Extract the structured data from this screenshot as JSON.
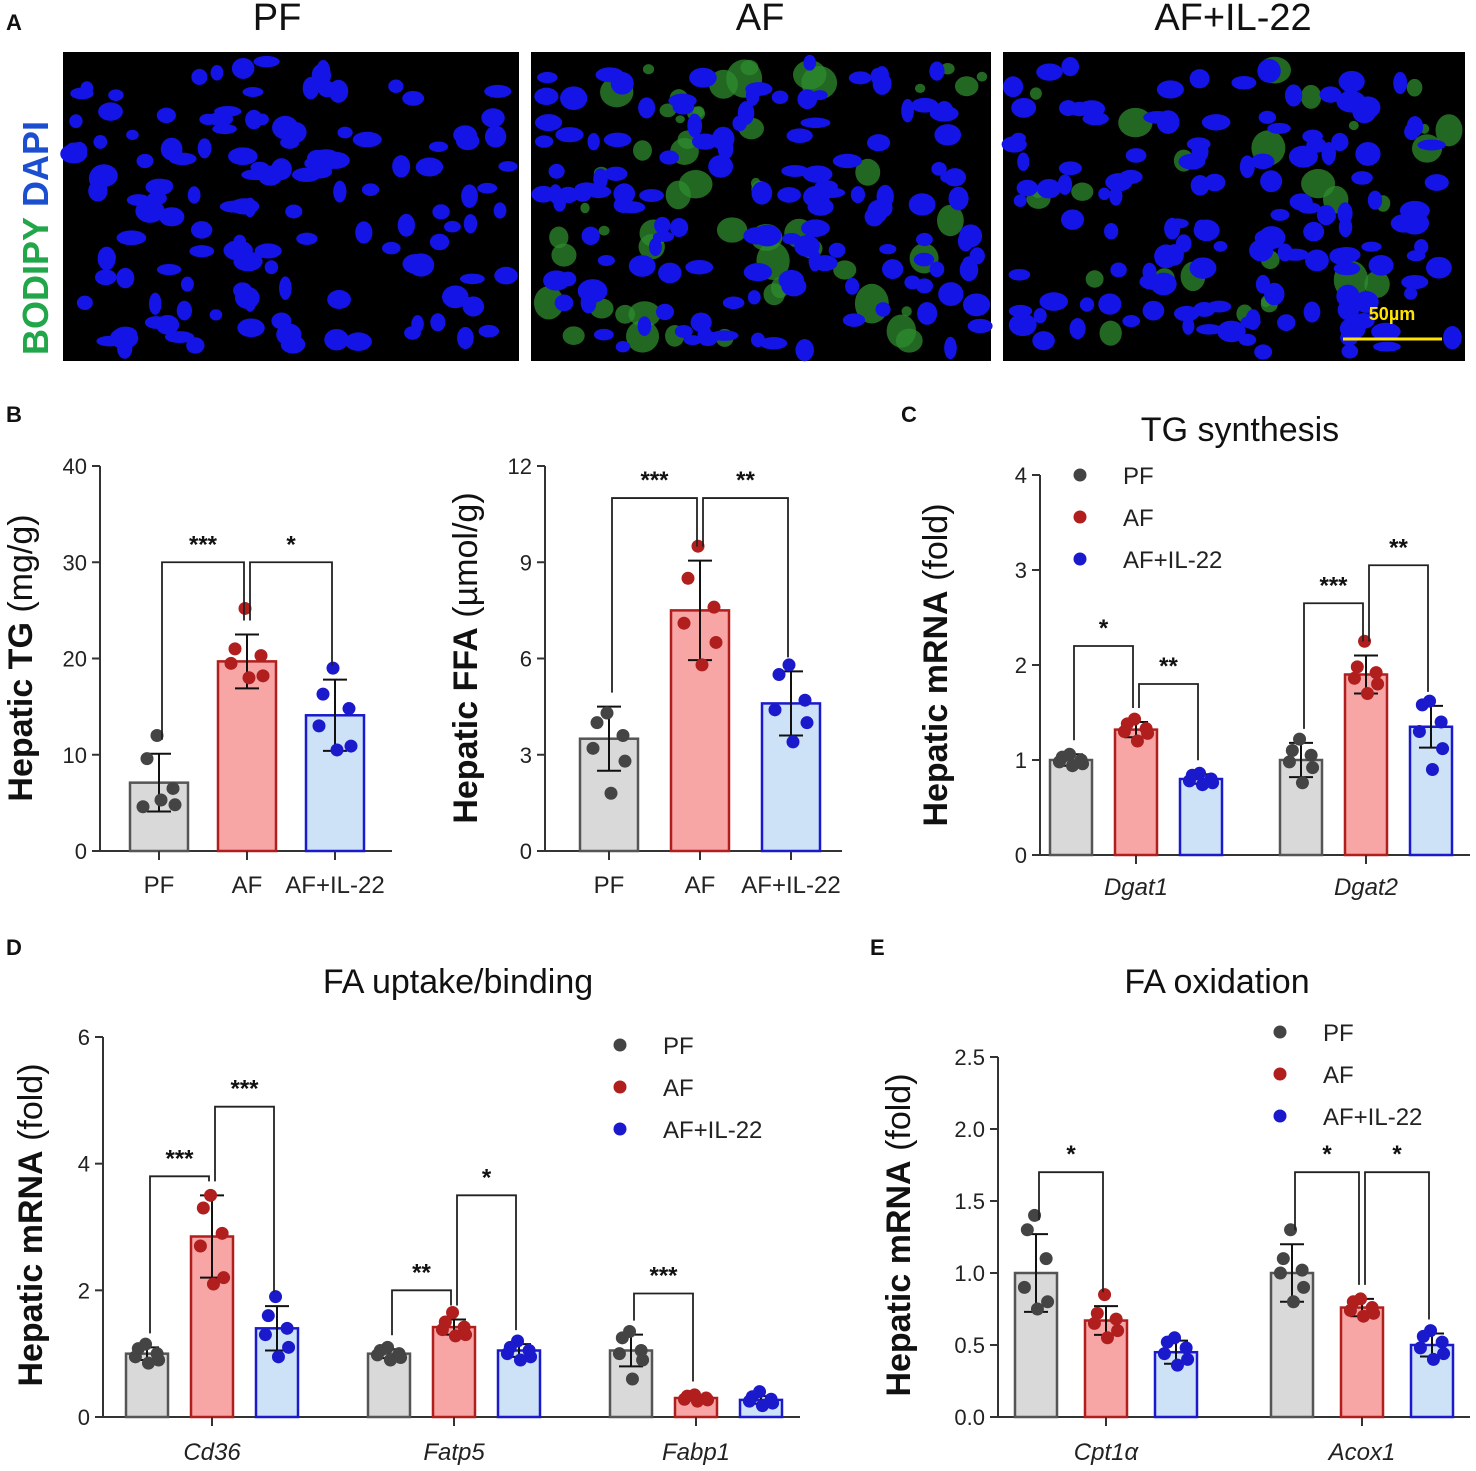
{
  "panelA": {
    "label": "A",
    "columns": [
      "PF",
      "AF",
      "AF+IL-22"
    ],
    "stain_label_green": "BODIPY",
    "stain_label_blue": "DAPI",
    "scale_bar": "50µm",
    "green_amount": [
      0,
      0.9,
      0.45
    ],
    "colors": {
      "nuclei": "#1414e6",
      "lipid": "#2e8b2e",
      "background": "#000000",
      "scale": "#ffe400"
    }
  },
  "colors": {
    "PF": "#d9d9d9",
    "AF": "#f7a5a5",
    "AF+IL-22": "#cde1f7",
    "PF_edge": "#555555",
    "AF_edge": "#b01e1e",
    "AF+IL-22_edge": "#1a1acc",
    "PF_dot": "#444444",
    "AF_dot": "#b01e1e",
    "AF+IL-22_dot": "#1a1acc"
  },
  "panels": [
    {
      "id": "B1",
      "label": "B",
      "title": "",
      "ylabel_bold": "Hepatic TG",
      "ylabel_rest": " (mg/g)",
      "ylim": [
        0,
        40
      ],
      "yticks": [
        "0",
        "10",
        "20",
        "30",
        "40"
      ],
      "groups": [
        ""
      ],
      "legend": [],
      "chart_data": {
        "type": "bar",
        "categories": [
          "PF",
          "AF",
          "AF+IL-22"
        ],
        "series": [
          {
            "name": "PF",
            "mean": [
              7.1
            ],
            "sd": [
              3.0
            ],
            "points": [
              [
                12.0,
                9.6,
                6.5,
                4.6,
                4.8,
                5.3
              ]
            ]
          },
          {
            "name": "AF",
            "mean": [
              19.7
            ],
            "sd": [
              2.8
            ],
            "points": [
              [
                25.2,
                21.0,
                20.3,
                19.5,
                18.2,
                18.0
              ]
            ]
          },
          {
            "name": "AF+IL-22",
            "mean": [
              14.1
            ],
            "sd": [
              3.7
            ],
            "points": [
              [
                19.0,
                16.3,
                14.8,
                13.0,
                10.9,
                10.5
              ]
            ]
          }
        ]
      },
      "sig": [
        {
          "from": [
            0,
            0
          ],
          "to": [
            0,
            1
          ],
          "text": "***",
          "y": 30
        },
        {
          "from": [
            0,
            1
          ],
          "to": [
            0,
            2
          ],
          "text": "*",
          "y": 30
        }
      ]
    },
    {
      "id": "B2",
      "label": "",
      "title": "",
      "ylabel_bold": "Hepatic FFA",
      "ylabel_rest": " (µmol/g)",
      "ylim": [
        0,
        12
      ],
      "yticks": [
        "0",
        "3",
        "6",
        "9",
        "12"
      ],
      "groups": [
        ""
      ],
      "legend": [],
      "chart_data": {
        "type": "bar",
        "categories": [
          "PF",
          "AF",
          "AF+IL-22"
        ],
        "series": [
          {
            "name": "PF",
            "mean": [
              3.5
            ],
            "sd": [
              1.0
            ],
            "points": [
              [
                4.3,
                4.0,
                3.6,
                3.2,
                2.8,
                1.8
              ]
            ]
          },
          {
            "name": "AF",
            "mean": [
              7.5
            ],
            "sd": [
              1.55
            ],
            "points": [
              [
                9.5,
                8.5,
                7.6,
                7.1,
                6.5,
                5.8
              ]
            ]
          },
          {
            "name": "AF+IL-22",
            "mean": [
              4.6
            ],
            "sd": [
              1.0
            ],
            "points": [
              [
                5.8,
                5.5,
                4.7,
                4.4,
                4.0,
                3.4
              ]
            ]
          }
        ]
      },
      "sig": [
        {
          "from": [
            0,
            0
          ],
          "to": [
            0,
            1
          ],
          "text": "***",
          "y": 11.0
        },
        {
          "from": [
            0,
            1
          ],
          "to": [
            0,
            2
          ],
          "text": "**",
          "y": 11.0
        }
      ]
    },
    {
      "id": "C",
      "label": "C",
      "title": "TG synthesis",
      "ylabel_bold": "Hepatic mRNA",
      "ylabel_rest": " (fold)",
      "ylim": [
        0,
        4
      ],
      "yticks": [
        "0",
        "1",
        "2",
        "3",
        "4"
      ],
      "groups": [
        "Dgat1",
        "Dgat2"
      ],
      "legend": [
        "PF",
        "AF",
        "AF+IL-22"
      ],
      "chart_data": {
        "type": "bar",
        "categories": [
          "Dgat1",
          "Dgat2"
        ],
        "series": [
          {
            "name": "PF",
            "mean": [
              1.0,
              1.0
            ],
            "sd": [
              0.06,
              0.18
            ],
            "points": [
              [
                1.06,
                1.03,
                1.0,
                0.98,
                0.96,
                0.94
              ],
              [
                1.22,
                1.1,
                1.05,
                0.98,
                0.92,
                0.76
              ]
            ]
          },
          {
            "name": "AF",
            "mean": [
              1.32,
              1.9
            ],
            "sd": [
              0.08,
              0.2
            ],
            "points": [
              [
                1.43,
                1.38,
                1.33,
                1.3,
                1.28,
                1.2
              ],
              [
                2.25,
                1.98,
                1.92,
                1.86,
                1.8,
                1.7
              ]
            ]
          },
          {
            "name": "AF+IL-22",
            "mean": [
              0.8,
              1.35
            ],
            "sd": [
              0.05,
              0.22
            ],
            "points": [
              [
                0.86,
                0.84,
                0.8,
                0.78,
                0.76,
                0.74
              ],
              [
                1.62,
                1.58,
                1.4,
                1.3,
                1.12,
                0.9
              ]
            ]
          }
        ]
      },
      "sig": [
        {
          "from": [
            0,
            0
          ],
          "to": [
            0,
            1
          ],
          "text": "*",
          "y": 2.2
        },
        {
          "from": [
            0,
            1
          ],
          "to": [
            0,
            2
          ],
          "text": "**",
          "y": 1.8
        },
        {
          "from": [
            1,
            0
          ],
          "to": [
            1,
            1
          ],
          "text": "***",
          "y": 2.65
        },
        {
          "from": [
            1,
            1
          ],
          "to": [
            1,
            2
          ],
          "text": "**",
          "y": 3.05
        }
      ]
    },
    {
      "id": "D",
      "label": "D",
      "title": "FA uptake/binding",
      "ylabel_bold": "Hepatic mRNA",
      "ylabel_rest": " (fold)",
      "ylim": [
        0,
        6
      ],
      "yticks": [
        "0",
        "2",
        "4",
        "6"
      ],
      "groups": [
        "Cd36",
        "Fatp5",
        "Fabp1"
      ],
      "legend": [
        "PF",
        "AF",
        "AF+IL-22"
      ],
      "chart_data": {
        "type": "bar",
        "categories": [
          "Cd36",
          "Fatp5",
          "Fabp1"
        ],
        "series": [
          {
            "name": "PF",
            "mean": [
              1.0,
              1.0,
              1.05
            ],
            "sd": [
              0.1,
              0.07,
              0.25
            ],
            "points": [
              [
                1.15,
                1.08,
                1.0,
                0.95,
                0.9,
                0.85
              ],
              [
                1.1,
                1.05,
                1.0,
                0.98,
                0.94,
                0.9
              ],
              [
                1.35,
                1.25,
                1.05,
                1.0,
                0.9,
                0.6
              ]
            ]
          },
          {
            "name": "AF",
            "mean": [
              2.85,
              1.42,
              0.3
            ],
            "sd": [
              0.65,
              0.12,
              0.04
            ],
            "points": [
              [
                3.5,
                3.3,
                2.9,
                2.7,
                2.2,
                2.1
              ],
              [
                1.65,
                1.5,
                1.42,
                1.38,
                1.3,
                1.28
              ],
              [
                0.35,
                0.33,
                0.3,
                0.28,
                0.27,
                0.25
              ]
            ]
          },
          {
            "name": "AF+IL-22",
            "mean": [
              1.4,
              1.05,
              0.27
            ],
            "sd": [
              0.35,
              0.1,
              0.06
            ],
            "points": [
              [
                1.9,
                1.6,
                1.4,
                1.3,
                1.1,
                0.95
              ],
              [
                1.2,
                1.1,
                1.05,
                1.0,
                0.95,
                0.9
              ],
              [
                0.4,
                0.32,
                0.28,
                0.25,
                0.22,
                0.18
              ]
            ]
          }
        ]
      },
      "sig": [
        {
          "from": [
            0,
            0
          ],
          "to": [
            0,
            1
          ],
          "text": "***",
          "y": 3.8
        },
        {
          "from": [
            0,
            1
          ],
          "to": [
            0,
            2
          ],
          "text": "***",
          "y": 4.9
        },
        {
          "from": [
            1,
            0
          ],
          "to": [
            1,
            1
          ],
          "text": "**",
          "y": 2.0
        },
        {
          "from": [
            1,
            1
          ],
          "to": [
            1,
            2
          ],
          "text": "*",
          "y": 3.5
        },
        {
          "from": [
            2,
            0
          ],
          "to": [
            2,
            1
          ],
          "text": "***",
          "y": 1.95
        }
      ]
    },
    {
      "id": "E",
      "label": "E",
      "title": "FA oxidation",
      "ylabel_bold": "Hepatic mRNA",
      "ylabel_rest": " (fold)",
      "ylim": [
        0,
        2.5
      ],
      "yticks": [
        "0.0",
        "0.5",
        "1.0",
        "1.5",
        "2.0",
        "2.5"
      ],
      "groups": [
        "Cpt1α",
        "Acox1"
      ],
      "legend": [
        "PF",
        "AF",
        "AF+IL-22"
      ],
      "chart_data": {
        "type": "bar",
        "categories": [
          "Cpt1α",
          "Acox1"
        ],
        "series": [
          {
            "name": "PF",
            "mean": [
              1.0,
              1.0
            ],
            "sd": [
              0.27,
              0.2
            ],
            "points": [
              [
                1.4,
                1.3,
                1.1,
                0.9,
                0.8,
                0.75
              ],
              [
                1.3,
                1.1,
                1.02,
                1.0,
                0.9,
                0.8
              ]
            ]
          },
          {
            "name": "AF",
            "mean": [
              0.67,
              0.76
            ],
            "sd": [
              0.1,
              0.06
            ],
            "points": [
              [
                0.85,
                0.72,
                0.68,
                0.65,
                0.6,
                0.55
              ],
              [
                0.82,
                0.8,
                0.76,
                0.74,
                0.72,
                0.7
              ]
            ]
          },
          {
            "name": "AF+IL-22",
            "mean": [
              0.45,
              0.5
            ],
            "sd": [
              0.08,
              0.08
            ],
            "points": [
              [
                0.55,
                0.52,
                0.48,
                0.44,
                0.4,
                0.36
              ],
              [
                0.6,
                0.56,
                0.52,
                0.48,
                0.44,
                0.4
              ]
            ]
          }
        ]
      },
      "sig": [
        {
          "from": [
            0,
            0
          ],
          "to": [
            0,
            1
          ],
          "text": "*",
          "y": 1.7
        },
        {
          "from": [
            1,
            0
          ],
          "to": [
            1,
            1
          ],
          "text": "*",
          "y": 1.7
        },
        {
          "from": [
            1,
            1
          ],
          "to": [
            1,
            2
          ],
          "text": "*",
          "y": 1.7
        }
      ]
    }
  ]
}
